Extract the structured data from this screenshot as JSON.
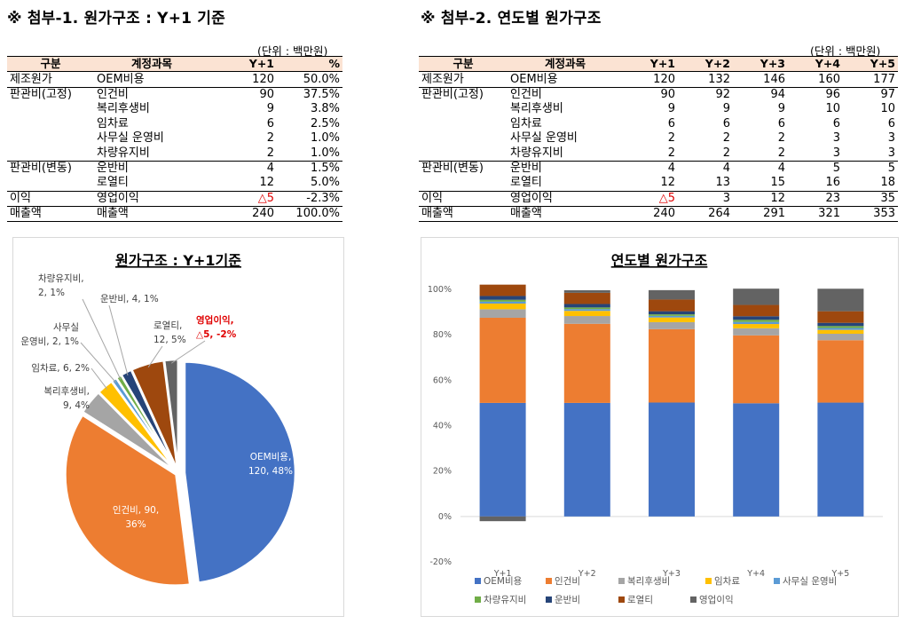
{
  "section1": {
    "title": "※ 첨부-1. 원가구조 : Y+1 기준",
    "unit": "(단위 : 백만원)",
    "headers": [
      "구분",
      "계정과목",
      "Y+1",
      "%"
    ],
    "rows": [
      {
        "group": "제조원가",
        "item": "OEM비용",
        "v": "120",
        "p": "50.0%",
        "end": true
      },
      {
        "group": "판관비(고정)",
        "item": "인건비",
        "v": "90",
        "p": "37.5%"
      },
      {
        "group": "",
        "item": "복리후생비",
        "v": "9",
        "p": "3.8%"
      },
      {
        "group": "",
        "item": "임차료",
        "v": "6",
        "p": "2.5%"
      },
      {
        "group": "",
        "item": "사무실 운영비",
        "v": "2",
        "p": "1.0%"
      },
      {
        "group": "",
        "item": "차량유지비",
        "v": "2",
        "p": "1.0%",
        "end": true
      },
      {
        "group": "판관비(변동)",
        "item": "운반비",
        "v": "4",
        "p": "1.5%"
      },
      {
        "group": "",
        "item": "로열티",
        "v": "12",
        "p": "5.0%",
        "end": true
      },
      {
        "group": "이익",
        "item": "영업이익",
        "v": "△5",
        "p": "-2.3%",
        "red": true,
        "end": true
      },
      {
        "group": "매출액",
        "item": "매출액",
        "v": "240",
        "p": "100.0%",
        "end": true
      }
    ]
  },
  "section2": {
    "title": "※ 첨부-2. 연도별 원가구조",
    "unit": "(단위 : 백만원)",
    "headers": [
      "구분",
      "계정과목",
      "Y+1",
      "Y+2",
      "Y+3",
      "Y+4",
      "Y+5"
    ],
    "rows": [
      {
        "group": "제조원가",
        "item": "OEM비용",
        "vals": [
          "120",
          "132",
          "146",
          "160",
          "177"
        ],
        "end": true
      },
      {
        "group": "판관비(고정)",
        "item": "인건비",
        "vals": [
          "90",
          "92",
          "94",
          "96",
          "97"
        ]
      },
      {
        "group": "",
        "item": "복리후생비",
        "vals": [
          "9",
          "9",
          "9",
          "10",
          "10"
        ]
      },
      {
        "group": "",
        "item": "임차료",
        "vals": [
          "6",
          "6",
          "6",
          "6",
          "6"
        ]
      },
      {
        "group": "",
        "item": "사무실 운영비",
        "vals": [
          "2",
          "2",
          "2",
          "3",
          "3"
        ]
      },
      {
        "group": "",
        "item": "차량유지비",
        "vals": [
          "2",
          "2",
          "2",
          "3",
          "3"
        ],
        "end": true
      },
      {
        "group": "판관비(변동)",
        "item": "운반비",
        "vals": [
          "4",
          "4",
          "4",
          "5",
          "5"
        ]
      },
      {
        "group": "",
        "item": "로열티",
        "vals": [
          "12",
          "13",
          "15",
          "16",
          "18"
        ],
        "end": true
      },
      {
        "group": "이익",
        "item": "영업이익",
        "vals": [
          "△5",
          "3",
          "12",
          "23",
          "35"
        ],
        "red0": true,
        "end": true
      },
      {
        "group": "매출액",
        "item": "매출액",
        "vals": [
          "240",
          "264",
          "291",
          "321",
          "353"
        ],
        "end": true
      }
    ]
  },
  "colors": {
    "OEM비용": "#4472c4",
    "인건비": "#ed7d31",
    "복리후생비": "#a5a5a5",
    "임차료": "#ffc000",
    "사무실 운영비": "#5b9bd5",
    "차량유지비": "#70ad47",
    "운반비": "#264478",
    "로열티": "#9e480e",
    "영업이익": "#636363"
  },
  "chart_data": [
    {
      "type": "pie",
      "title": "원가구조 : Y+1기준",
      "slices": [
        {
          "name": "OEM비용",
          "value": 120,
          "pct": "48%",
          "label": [
            "OEM비용,",
            "120, 48%"
          ]
        },
        {
          "name": "인건비",
          "value": 90,
          "pct": "36%",
          "label": [
            "인건비, 90,",
            "36%"
          ]
        },
        {
          "name": "복리후생비",
          "value": 9,
          "pct": "4%",
          "label": [
            "복리후생비,",
            "9, 4%"
          ]
        },
        {
          "name": "임차료",
          "value": 6,
          "pct": "2%",
          "label": [
            "임차료, 6, 2%"
          ]
        },
        {
          "name": "사무실 운영비",
          "value": 2,
          "pct": "1%",
          "label": [
            "사무실",
            "운영비, 2, 1%"
          ]
        },
        {
          "name": "차량유지비",
          "value": 2,
          "pct": "1%",
          "label": [
            "차량유지비,",
            "2, 1%"
          ]
        },
        {
          "name": "운반비",
          "value": 4,
          "pct": "1%",
          "label": [
            "운반비, 4, 1%"
          ]
        },
        {
          "name": "로열티",
          "value": 12,
          "pct": "5%",
          "label": [
            "로열티,",
            "12, 5%"
          ]
        },
        {
          "name": "영업이익",
          "value": 5,
          "display": "△5",
          "pct": "-2%",
          "label": [
            "영업이익,",
            "△5, -2%"
          ],
          "red": true
        }
      ]
    },
    {
      "type": "bar",
      "stacked": "percent",
      "title": "연도별 원가구조",
      "categories": [
        "Y+1",
        "Y+2",
        "Y+3",
        "Y+4",
        "Y+5"
      ],
      "ylim": [
        -20,
        100
      ],
      "yticks": [
        "-20%",
        "0%",
        "20%",
        "40%",
        "60%",
        "80%",
        "100%"
      ],
      "legend_position": "bottom",
      "series": [
        {
          "name": "OEM비용",
          "values": [
            120,
            132,
            146,
            160,
            177
          ]
        },
        {
          "name": "인건비",
          "values": [
            90,
            92,
            94,
            96,
            97
          ]
        },
        {
          "name": "복리후생비",
          "values": [
            9,
            9,
            9,
            10,
            10
          ]
        },
        {
          "name": "임차료",
          "values": [
            6,
            6,
            6,
            6,
            6
          ]
        },
        {
          "name": "사무실 운영비",
          "values": [
            2,
            2,
            2,
            3,
            3
          ]
        },
        {
          "name": "차량유지비",
          "values": [
            2,
            2,
            2,
            3,
            3
          ]
        },
        {
          "name": "운반비",
          "values": [
            4,
            4,
            4,
            5,
            5
          ]
        },
        {
          "name": "로열티",
          "values": [
            12,
            13,
            15,
            16,
            18
          ]
        },
        {
          "name": "영업이익",
          "values": [
            -5,
            3,
            12,
            23,
            35
          ]
        }
      ],
      "totals": [
        240,
        264,
        291,
        321,
        353
      ]
    }
  ]
}
